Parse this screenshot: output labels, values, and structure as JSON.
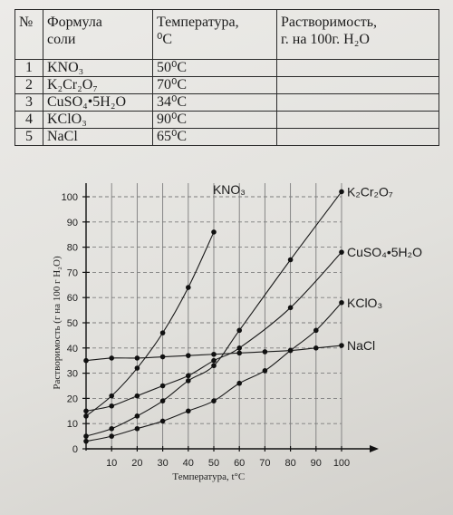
{
  "table": {
    "headers": {
      "num": "№",
      "formula": "Формула\nсоли",
      "temperature": "Температура,\n⁰C",
      "solubility": "Растворимость,\nг. на 100г. H₂O"
    },
    "rows": [
      {
        "num": "1",
        "formula": "KNO₃",
        "temperature": "50⁰C",
        "solubility": ""
      },
      {
        "num": "2",
        "formula": "K₂Cr₂O₇",
        "temperature": "70⁰C",
        "solubility": ""
      },
      {
        "num": "3",
        "formula": "CuSO₄•5H₂O",
        "temperature": "34⁰C",
        "solubility": ""
      },
      {
        "num": "4",
        "formula": "KClO₃",
        "temperature": "90⁰C",
        "solubility": ""
      },
      {
        "num": "5",
        "formula": "NaCl",
        "temperature": "65⁰C",
        "solubility": ""
      }
    ]
  },
  "chart_data": {
    "type": "line",
    "xlabel": "Температура, t°C",
    "ylabel": "Растворимость (г на 100 г H₂O)",
    "xlim": [
      0,
      100
    ],
    "ylim": [
      0,
      100
    ],
    "x_ticks": [
      10,
      20,
      30,
      40,
      50,
      60,
      70,
      80,
      90,
      100
    ],
    "y_ticks": [
      0,
      10,
      20,
      30,
      40,
      50,
      60,
      70,
      80,
      90,
      100
    ],
    "grid": true,
    "series": [
      {
        "name": "KNO₃",
        "label_pos": "top-end",
        "points": [
          [
            0,
            13
          ],
          [
            10,
            21
          ],
          [
            20,
            32
          ],
          [
            30,
            46
          ],
          [
            40,
            64
          ],
          [
            50,
            86
          ]
        ]
      },
      {
        "name": "K₂Cr₂O₇",
        "label_pos": "right-end",
        "points": [
          [
            0,
            5
          ],
          [
            10,
            8
          ],
          [
            20,
            13
          ],
          [
            30,
            19
          ],
          [
            40,
            27
          ],
          [
            50,
            33
          ],
          [
            60,
            47
          ],
          [
            80,
            75
          ],
          [
            100,
            102
          ]
        ]
      },
      {
        "name": "CuSO₄•5H₂O",
        "label_pos": "right-end",
        "points": [
          [
            0,
            15
          ],
          [
            10,
            17
          ],
          [
            20,
            21
          ],
          [
            30,
            25
          ],
          [
            40,
            29
          ],
          [
            50,
            35
          ],
          [
            60,
            40
          ],
          [
            80,
            56
          ],
          [
            100,
            78
          ]
        ]
      },
      {
        "name": "KClO₃",
        "label_pos": "right-end",
        "points": [
          [
            0,
            3
          ],
          [
            10,
            5
          ],
          [
            20,
            8
          ],
          [
            30,
            11
          ],
          [
            40,
            15
          ],
          [
            50,
            19
          ],
          [
            60,
            26
          ],
          [
            70,
            31
          ],
          [
            80,
            39
          ],
          [
            90,
            47
          ],
          [
            100,
            58
          ]
        ]
      },
      {
        "name": "NaCl",
        "label_pos": "right-end",
        "points": [
          [
            0,
            35
          ],
          [
            10,
            36
          ],
          [
            20,
            36
          ],
          [
            30,
            36.5
          ],
          [
            40,
            37
          ],
          [
            50,
            37.5
          ],
          [
            60,
            38
          ],
          [
            70,
            38.5
          ],
          [
            80,
            39
          ],
          [
            90,
            40
          ],
          [
            100,
            41
          ]
        ]
      }
    ]
  }
}
